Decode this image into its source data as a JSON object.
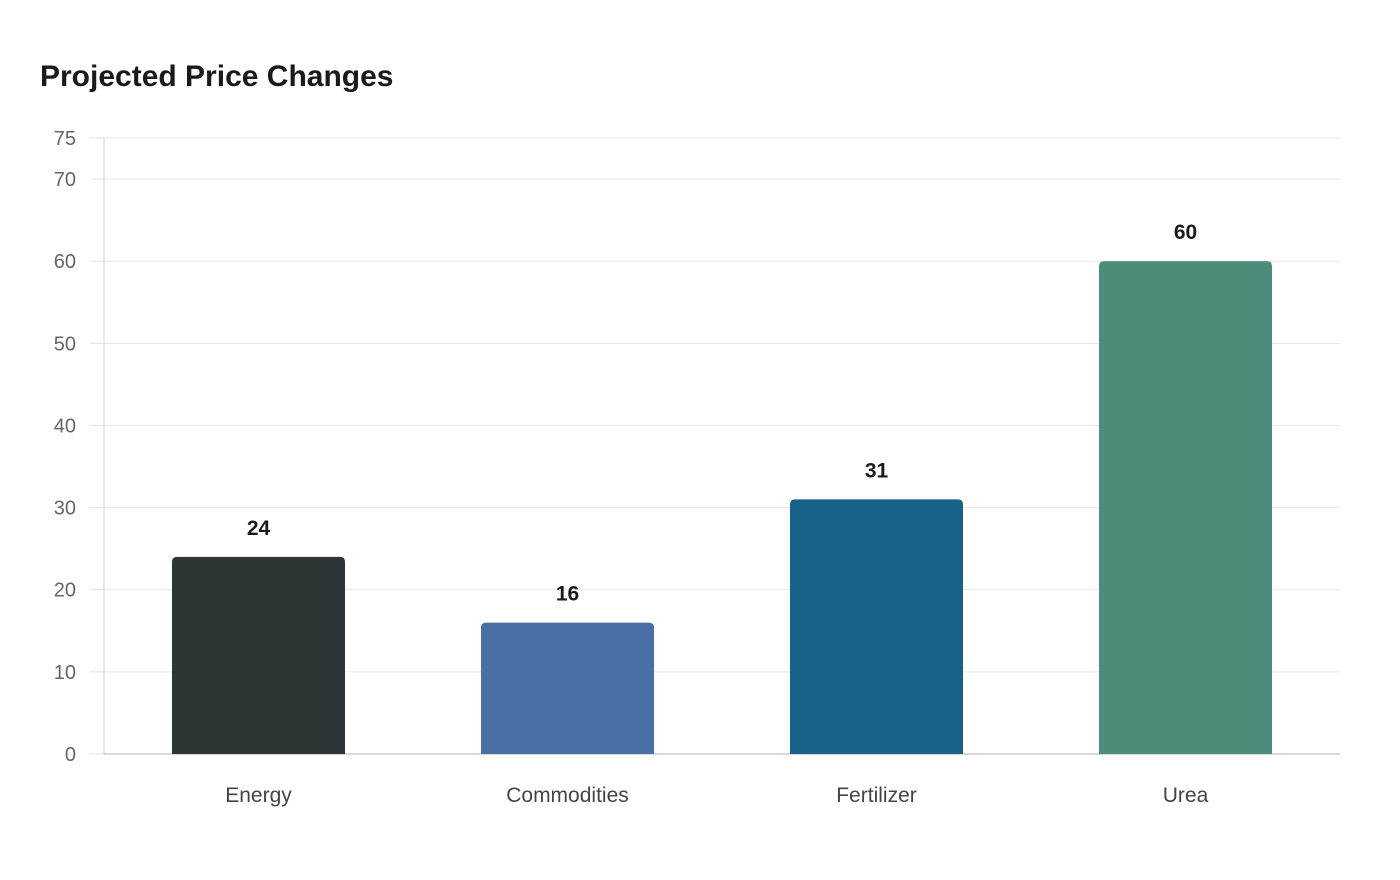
{
  "chart_data": {
    "type": "bar",
    "title": "Projected Price Changes",
    "xlabel": "",
    "ylabel": "",
    "categories": [
      "Energy",
      "Commodities",
      "Fertilizer",
      "Urea"
    ],
    "values": [
      24,
      16,
      31,
      60
    ],
    "colors": [
      "#2d3537",
      "#4a6fa5",
      "#186289",
      "#4d8c7a"
    ],
    "ylim": [
      0,
      75
    ],
    "yticks": [
      0,
      10,
      20,
      30,
      40,
      50,
      60,
      70,
      75
    ],
    "grid": true,
    "legend": "none",
    "data_labels": true
  }
}
